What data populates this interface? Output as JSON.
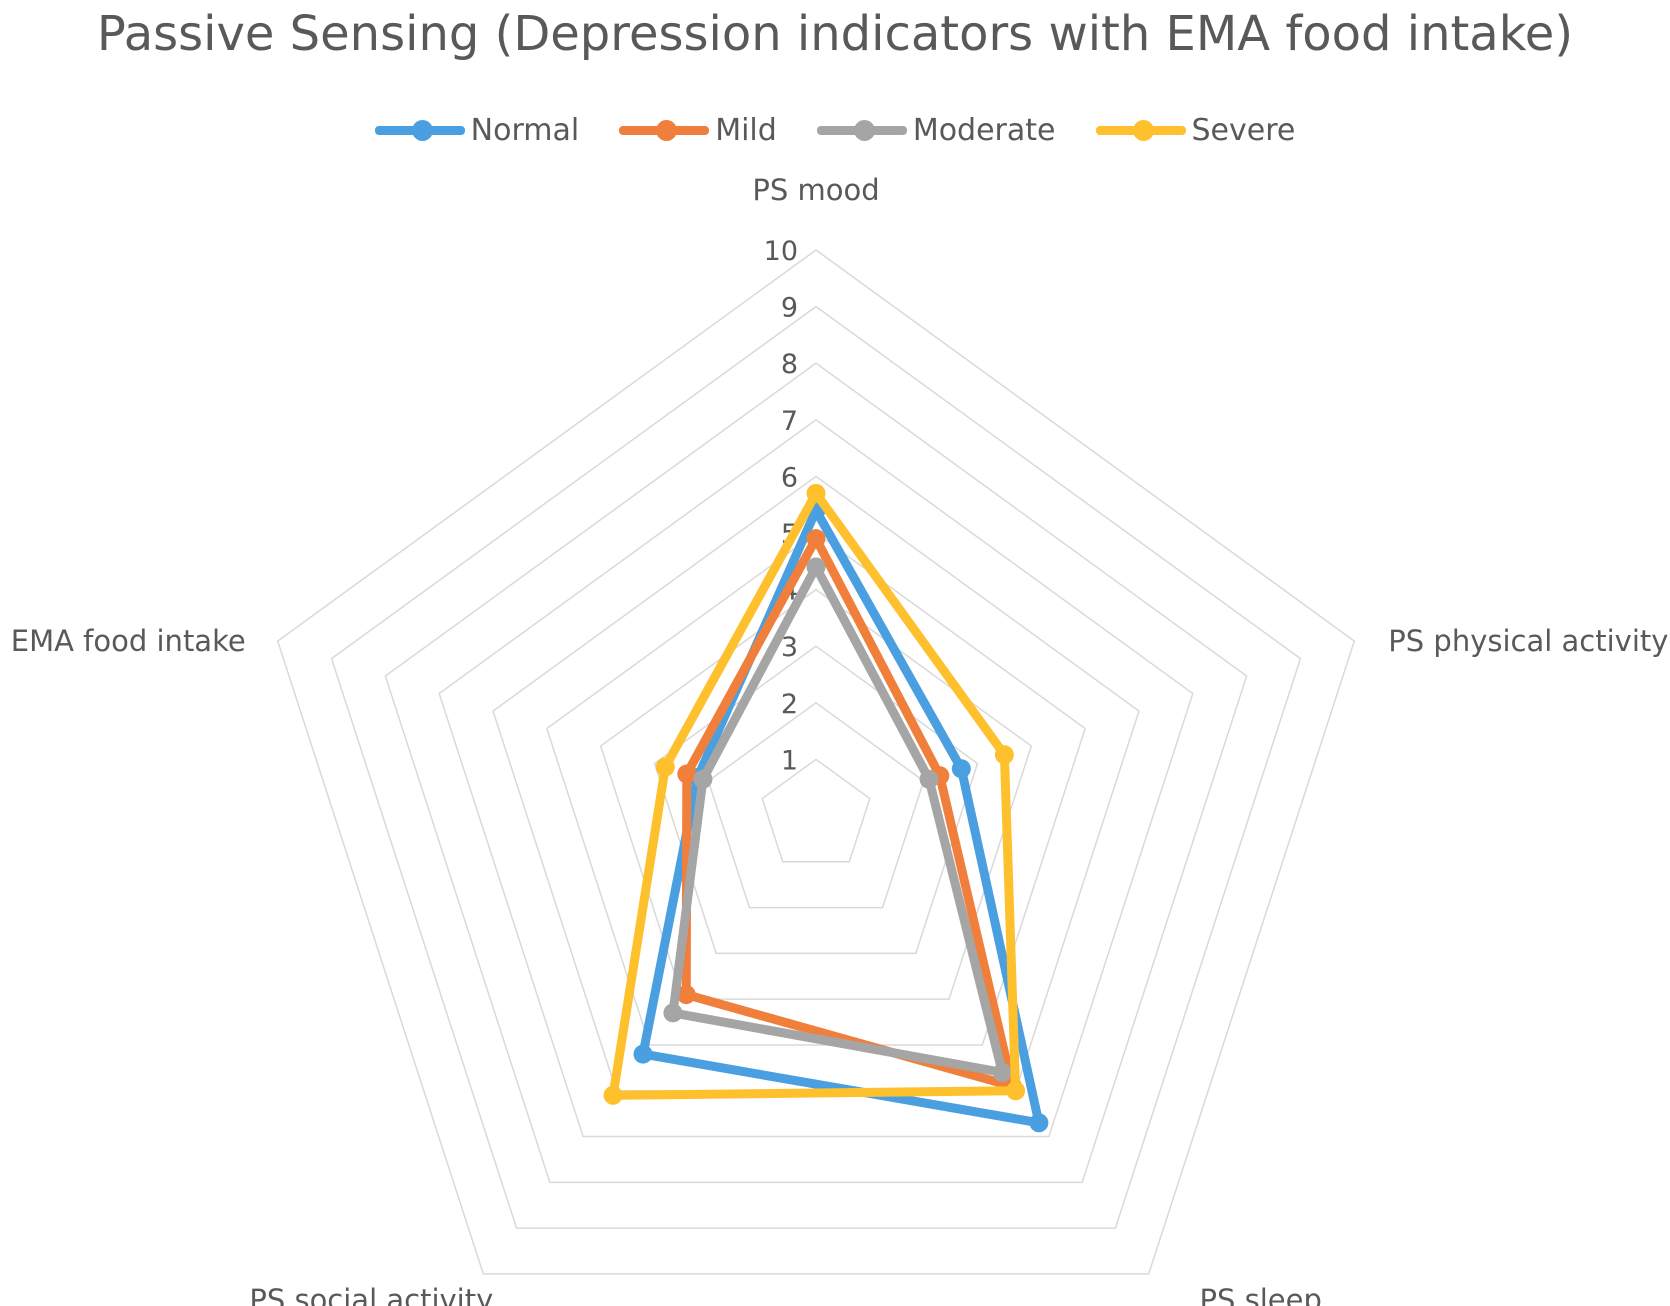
{
  "chart_data": {
    "type": "radar",
    "title": "Passive Sensing (Depression indicators with EMA food intake)",
    "axes": [
      "PS mood",
      "PS physical activity",
      "PS sleep",
      "PS social activity",
      "EMA food intake"
    ],
    "rmin": 0,
    "rmax": 10,
    "ticks": [
      "1",
      "2",
      "3",
      "4",
      "5",
      "6",
      "7",
      "8",
      "9",
      "10"
    ],
    "grid": true,
    "legend_position": "top",
    "series": [
      {
        "name": "Normal",
        "color": "#4a9fe0",
        "values": [
          5.4,
          2.7,
          6.7,
          5.2,
          2.2
        ]
      },
      {
        "name": "Mild",
        "color": "#f07f3c",
        "values": [
          4.9,
          2.3,
          5.9,
          3.9,
          2.4
        ]
      },
      {
        "name": "Moderate",
        "color": "#a5a5a5",
        "values": [
          4.4,
          2.1,
          5.6,
          4.3,
          2.1
        ]
      },
      {
        "name": "Severe",
        "color": "#ffc02d",
        "values": [
          5.7,
          3.5,
          6.0,
          6.1,
          2.8
        ]
      }
    ]
  }
}
